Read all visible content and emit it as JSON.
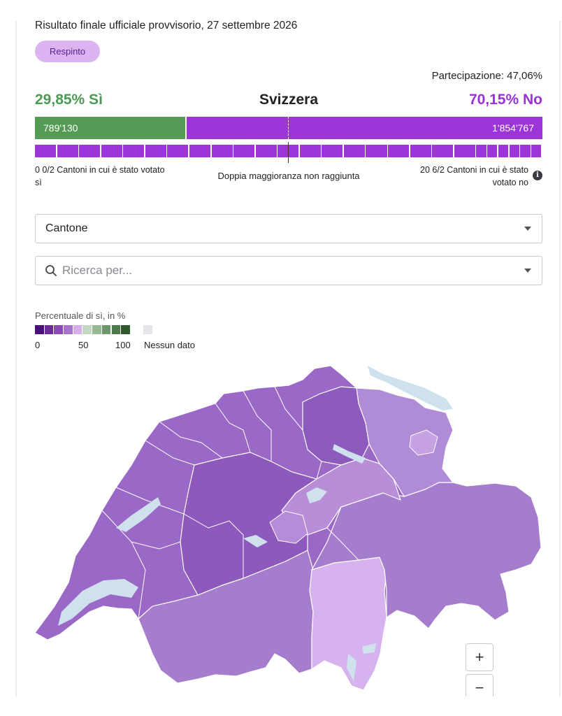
{
  "result": {
    "date_line": "Risultato finale ufficiale provvisorio, 27 settembre 2026",
    "status_badge": "Respinto",
    "turnout": "Partecipazione: 47,06%",
    "yes_pct_label": "29,85% Sì",
    "country": "Svizzera",
    "no_pct_label": "70,15% No",
    "yes_share": 29.85,
    "yes_votes": "789'130",
    "no_votes": "1'854'767",
    "cantons_yes": "0 0/2 Cantoni in cui è stato votato sì",
    "majority_text": "Doppia maggioranza non raggiunta",
    "cantons_no": "20 6/2 Cantoni in cui è stato votato no",
    "canton_units": [
      2,
      2,
      2,
      2,
      2,
      2,
      2,
      2,
      2,
      2,
      2,
      2,
      2,
      2,
      2,
      2,
      2,
      2,
      2,
      2,
      1,
      1,
      1,
      1,
      1,
      1
    ],
    "colors": {
      "yes": "#559a55",
      "no": "#9b35d8",
      "badge_bg": "#dcb4f2"
    }
  },
  "filters": {
    "canton_select": "Cantone",
    "search_placeholder": "Ricerca per..."
  },
  "legend": {
    "title": "Percentuale di sì, in %",
    "scale_colors": [
      "#4a0f7a",
      "#6c2a9c",
      "#8a4ab8",
      "#a673cd",
      "#d4afe8",
      "#c2d8c1",
      "#98b996",
      "#6f966d",
      "#4d7a4b",
      "#2e5a2d"
    ],
    "nodata_color": "#e6e6ea",
    "label_0": "0",
    "label_50": "50",
    "label_100": "100",
    "nodata_label": "Nessun dato"
  },
  "map": {
    "zoom_in": "+",
    "zoom_out": "−"
  }
}
